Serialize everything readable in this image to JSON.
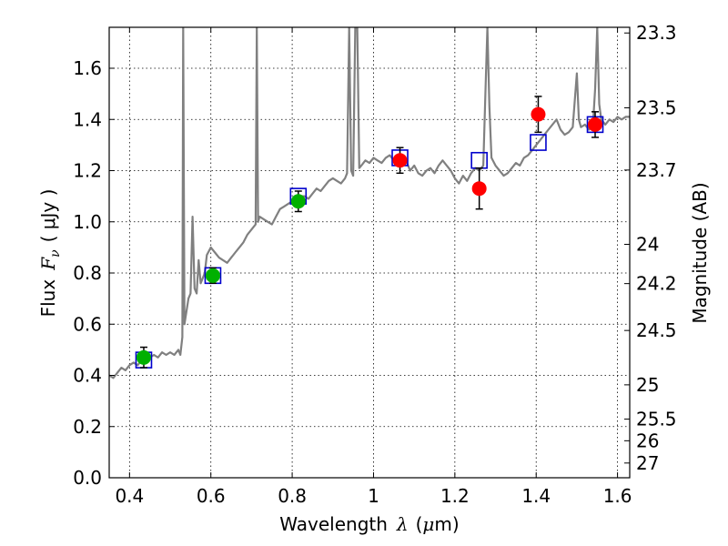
{
  "chart_data": {
    "type": "scatter",
    "title": "",
    "xlabel": {
      "prefix": "Wavelength",
      "symbol": "λ",
      "unit_open": "(",
      "unit_mu": "μ",
      "unit_rest": "m)"
    },
    "ylabel": {
      "prefix": "Flux",
      "symbol": "F",
      "sub": "ν",
      "unit": "( μJy )"
    },
    "y2label": "Magnitude (AB)",
    "xlim": [
      0.35,
      1.63
    ],
    "ylim": [
      0.0,
      1.76
    ],
    "grid": true,
    "x_ticks": [
      {
        "v": 0.4,
        "label": "0.4"
      },
      {
        "v": 0.6,
        "label": "0.6"
      },
      {
        "v": 0.8,
        "label": "0.8"
      },
      {
        "v": 1.0,
        "label": "1"
      },
      {
        "v": 1.2,
        "label": "1.2"
      },
      {
        "v": 1.4,
        "label": "1.4"
      },
      {
        "v": 1.6,
        "label": "1.6"
      }
    ],
    "y_ticks": [
      {
        "v": 0.0,
        "label": "0.0"
      },
      {
        "v": 0.2,
        "label": "0.2"
      },
      {
        "v": 0.4,
        "label": "0.4"
      },
      {
        "v": 0.6,
        "label": "0.6"
      },
      {
        "v": 0.8,
        "label": "0.8"
      },
      {
        "v": 1.0,
        "label": "1.0"
      },
      {
        "v": 1.2,
        "label": "1.2"
      },
      {
        "v": 1.4,
        "label": "1.4"
      },
      {
        "v": 1.6,
        "label": "1.6"
      }
    ],
    "mag_ticks": [
      {
        "mag": 23.3,
        "label": "23.3"
      },
      {
        "mag": 23.5,
        "label": "23.5"
      },
      {
        "mag": 23.7,
        "label": "23.7"
      },
      {
        "mag": 24.0,
        "label": "24"
      },
      {
        "mag": 24.2,
        "label": "24.2"
      },
      {
        "mag": 24.5,
        "label": "24.5"
      },
      {
        "mag": 25.0,
        "label": "25"
      },
      {
        "mag": 25.5,
        "label": "25.5"
      },
      {
        "mag": 26.0,
        "label": "26"
      },
      {
        "mag": 27.0,
        "label": "27"
      }
    ],
    "spectrum": {
      "name": "model spectrum",
      "color": "#808080",
      "points": [
        [
          0.35,
          0.4
        ],
        [
          0.36,
          0.39
        ],
        [
          0.37,
          0.41
        ],
        [
          0.38,
          0.43
        ],
        [
          0.39,
          0.42
        ],
        [
          0.4,
          0.44
        ],
        [
          0.41,
          0.45
        ],
        [
          0.42,
          0.44
        ],
        [
          0.43,
          0.46
        ],
        [
          0.44,
          0.45
        ],
        [
          0.45,
          0.47
        ],
        [
          0.46,
          0.48
        ],
        [
          0.47,
          0.47
        ],
        [
          0.48,
          0.49
        ],
        [
          0.49,
          0.48
        ],
        [
          0.5,
          0.49
        ],
        [
          0.51,
          0.48
        ],
        [
          0.52,
          0.5
        ],
        [
          0.525,
          0.48
        ],
        [
          0.53,
          0.55
        ],
        [
          0.532,
          1.76
        ],
        [
          0.535,
          0.6
        ],
        [
          0.54,
          0.65
        ],
        [
          0.545,
          0.7
        ],
        [
          0.55,
          0.72
        ],
        [
          0.555,
          1.02
        ],
        [
          0.56,
          0.74
        ],
        [
          0.565,
          0.72
        ],
        [
          0.57,
          0.85
        ],
        [
          0.575,
          0.76
        ],
        [
          0.58,
          0.78
        ],
        [
          0.585,
          0.8
        ],
        [
          0.59,
          0.87
        ],
        [
          0.6,
          0.9
        ],
        [
          0.61,
          0.88
        ],
        [
          0.62,
          0.86
        ],
        [
          0.63,
          0.85
        ],
        [
          0.64,
          0.84
        ],
        [
          0.65,
          0.86
        ],
        [
          0.66,
          0.88
        ],
        [
          0.67,
          0.9
        ],
        [
          0.68,
          0.92
        ],
        [
          0.69,
          0.95
        ],
        [
          0.7,
          0.97
        ],
        [
          0.71,
          0.99
        ],
        [
          0.713,
          1.76
        ],
        [
          0.716,
          1.0
        ],
        [
          0.72,
          1.02
        ],
        [
          0.73,
          1.01
        ],
        [
          0.74,
          1.0
        ],
        [
          0.75,
          0.99
        ],
        [
          0.76,
          1.02
        ],
        [
          0.77,
          1.05
        ],
        [
          0.78,
          1.06
        ],
        [
          0.79,
          1.07
        ],
        [
          0.8,
          1.08
        ],
        [
          0.81,
          1.09
        ],
        [
          0.82,
          1.1
        ],
        [
          0.83,
          1.1
        ],
        [
          0.84,
          1.09
        ],
        [
          0.85,
          1.11
        ],
        [
          0.86,
          1.13
        ],
        [
          0.87,
          1.12
        ],
        [
          0.88,
          1.14
        ],
        [
          0.89,
          1.16
        ],
        [
          0.9,
          1.17
        ],
        [
          0.91,
          1.16
        ],
        [
          0.92,
          1.15
        ],
        [
          0.93,
          1.17
        ],
        [
          0.935,
          1.19
        ],
        [
          0.94,
          1.76
        ],
        [
          0.945,
          1.2
        ],
        [
          0.95,
          1.18
        ],
        [
          0.955,
          1.76
        ],
        [
          0.96,
          1.76
        ],
        [
          0.965,
          1.21
        ],
        [
          0.97,
          1.22
        ],
        [
          0.98,
          1.24
        ],
        [
          0.99,
          1.23
        ],
        [
          1.0,
          1.25
        ],
        [
          1.01,
          1.24
        ],
        [
          1.02,
          1.23
        ],
        [
          1.03,
          1.25
        ],
        [
          1.04,
          1.26
        ],
        [
          1.05,
          1.24
        ],
        [
          1.06,
          1.23
        ],
        [
          1.07,
          1.25
        ],
        [
          1.08,
          1.24
        ],
        [
          1.09,
          1.2
        ],
        [
          1.1,
          1.22
        ],
        [
          1.11,
          1.19
        ],
        [
          1.12,
          1.18
        ],
        [
          1.13,
          1.2
        ],
        [
          1.14,
          1.21
        ],
        [
          1.15,
          1.19
        ],
        [
          1.16,
          1.22
        ],
        [
          1.17,
          1.24
        ],
        [
          1.18,
          1.22
        ],
        [
          1.19,
          1.2
        ],
        [
          1.2,
          1.17
        ],
        [
          1.21,
          1.15
        ],
        [
          1.22,
          1.18
        ],
        [
          1.23,
          1.16
        ],
        [
          1.24,
          1.19
        ],
        [
          1.25,
          1.21
        ],
        [
          1.26,
          1.2
        ],
        [
          1.27,
          1.22
        ],
        [
          1.275,
          1.5
        ],
        [
          1.28,
          1.76
        ],
        [
          1.285,
          1.45
        ],
        [
          1.29,
          1.25
        ],
        [
          1.3,
          1.22
        ],
        [
          1.31,
          1.2
        ],
        [
          1.32,
          1.18
        ],
        [
          1.33,
          1.19
        ],
        [
          1.34,
          1.21
        ],
        [
          1.35,
          1.23
        ],
        [
          1.36,
          1.22
        ],
        [
          1.37,
          1.25
        ],
        [
          1.38,
          1.26
        ],
        [
          1.39,
          1.28
        ],
        [
          1.4,
          1.3
        ],
        [
          1.41,
          1.32
        ],
        [
          1.42,
          1.34
        ],
        [
          1.43,
          1.36
        ],
        [
          1.44,
          1.38
        ],
        [
          1.45,
          1.4
        ],
        [
          1.46,
          1.36
        ],
        [
          1.47,
          1.34
        ],
        [
          1.48,
          1.35
        ],
        [
          1.49,
          1.37
        ],
        [
          1.5,
          1.58
        ],
        [
          1.505,
          1.4
        ],
        [
          1.51,
          1.37
        ],
        [
          1.52,
          1.38
        ],
        [
          1.53,
          1.36
        ],
        [
          1.54,
          1.39
        ],
        [
          1.545,
          1.52
        ],
        [
          1.55,
          1.76
        ],
        [
          1.555,
          1.46
        ],
        [
          1.56,
          1.4
        ],
        [
          1.57,
          1.38
        ],
        [
          1.58,
          1.4
        ],
        [
          1.59,
          1.39
        ],
        [
          1.6,
          1.41
        ],
        [
          1.61,
          1.4
        ],
        [
          1.62,
          1.41
        ],
        [
          1.63,
          1.41
        ]
      ]
    },
    "model_points": {
      "name": "model photometry",
      "color": "#0000cc",
      "x": [
        0.435,
        0.605,
        0.815,
        1.065,
        1.26,
        1.405,
        1.545
      ],
      "y": [
        0.46,
        0.79,
        1.1,
        1.25,
        1.24,
        1.31,
        1.38
      ]
    },
    "observed_optical": {
      "name": "optical photometry",
      "color": "#00b000",
      "x": [
        0.435,
        0.605,
        0.815
      ],
      "y": [
        0.47,
        0.79,
        1.08
      ],
      "err": [
        0.04,
        0.03,
        0.04
      ]
    },
    "observed_nir": {
      "name": "near-IR photometry",
      "color": "#ff0000",
      "x": [
        1.065,
        1.26,
        1.405,
        1.545
      ],
      "y": [
        1.24,
        1.13,
        1.42,
        1.38
      ],
      "err": [
        0.05,
        0.08,
        0.07,
        0.05
      ]
    }
  }
}
